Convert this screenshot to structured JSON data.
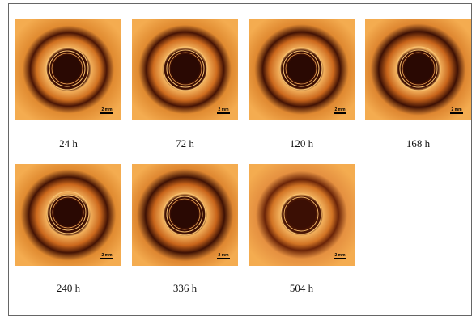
{
  "scale_label": "2 mm",
  "panels": [
    {
      "label": "24 h"
    },
    {
      "label": "72 h"
    },
    {
      "label": "120 h"
    },
    {
      "label": "168 h"
    },
    {
      "label": "240 h"
    },
    {
      "label": "336 h"
    },
    {
      "label": "504 h"
    }
  ],
  "colors": {
    "background": "#f0a64a",
    "ring_outer": "#c8641a",
    "ring_dark": "#5a1e06",
    "center": "#3a0e04"
  }
}
